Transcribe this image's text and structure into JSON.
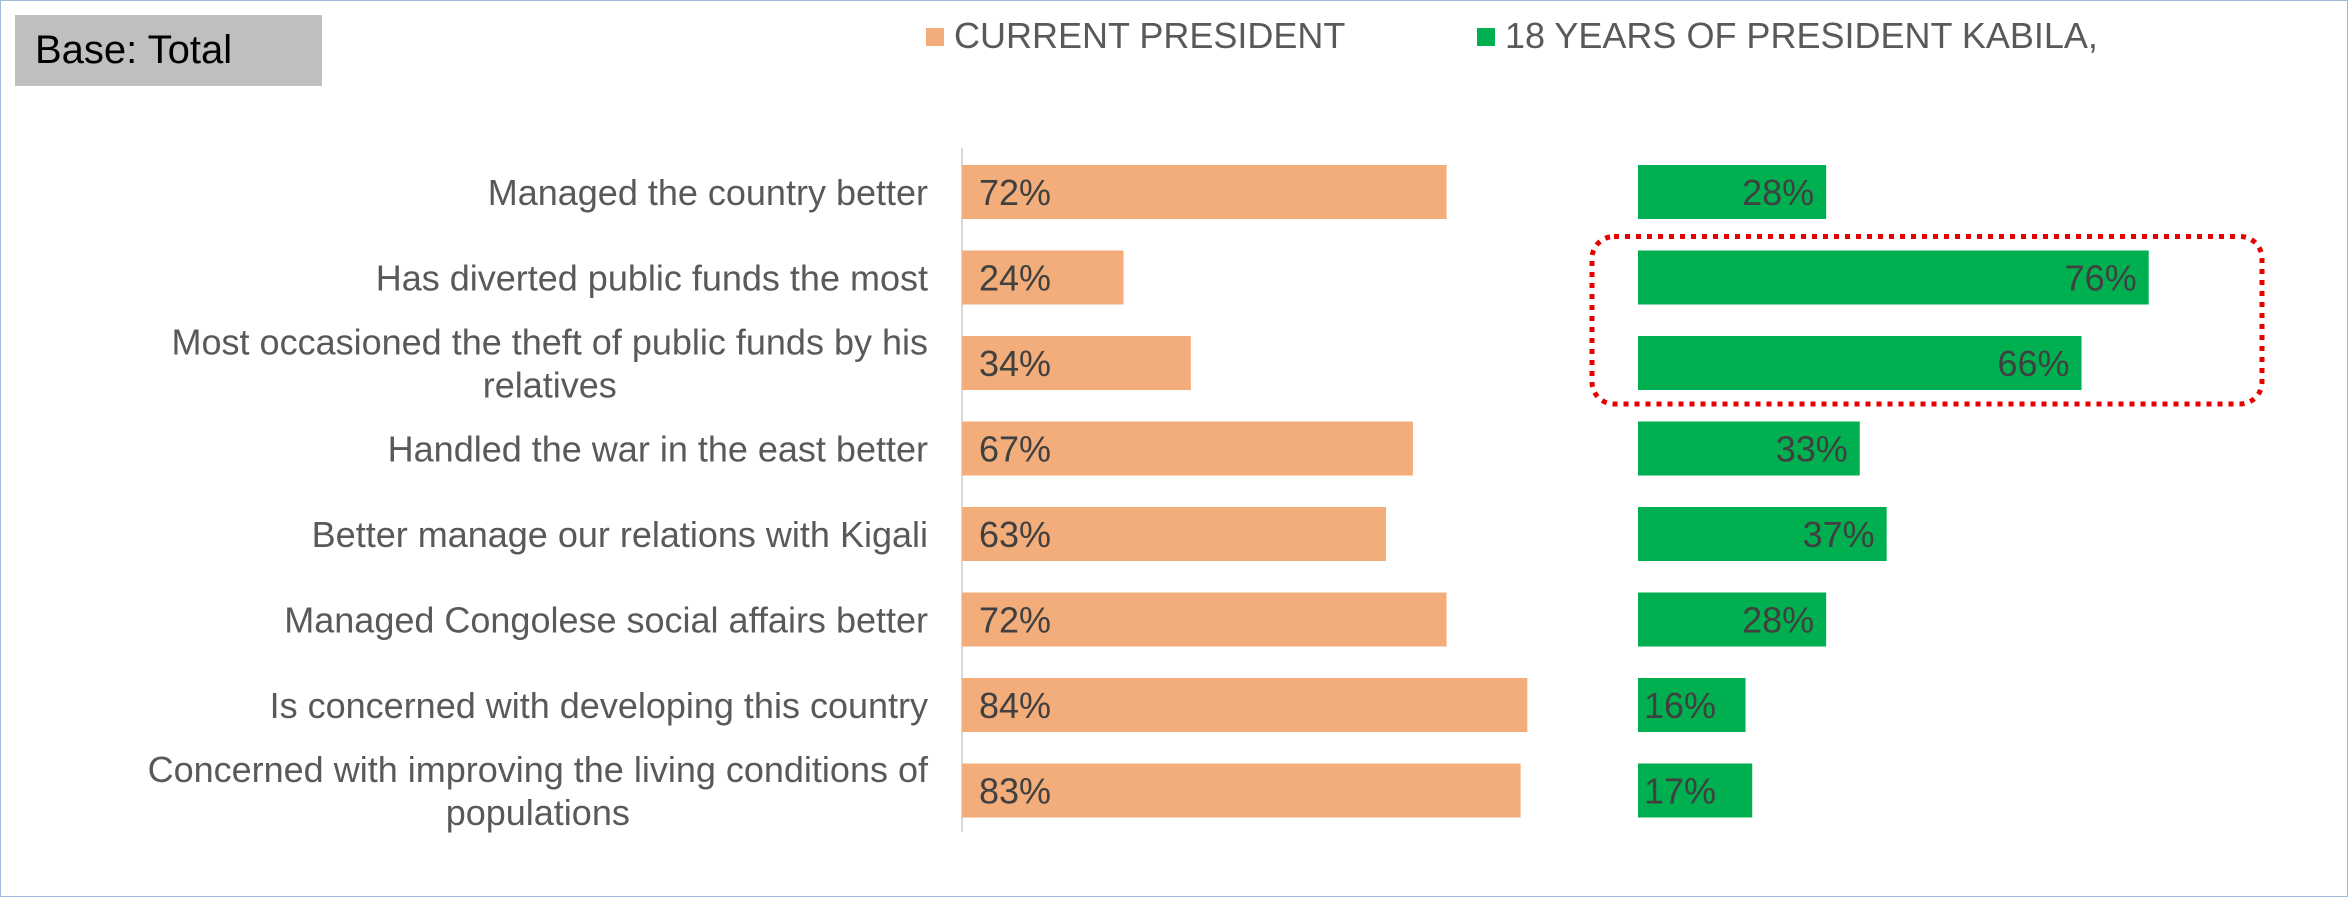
{
  "base_label": "Base: Total",
  "chart_data": {
    "type": "bar",
    "orientation": "horizontal",
    "layout": "two-panel",
    "categories": [
      [
        "Managed the country better"
      ],
      [
        "Has diverted public funds the most"
      ],
      [
        "Most occasioned the theft of public funds by his",
        "relatives"
      ],
      [
        "Handled the war in the east better"
      ],
      [
        "Better manage our relations with Kigali"
      ],
      [
        "Managed Congolese social affairs better"
      ],
      [
        "Is concerned with developing this country"
      ],
      [
        "Concerned with improving the living conditions of",
        "populations"
      ]
    ],
    "series": [
      {
        "name": "CURRENT PRESIDENT",
        "color": "#f2ad7b",
        "values": [
          72,
          24,
          34,
          67,
          63,
          72,
          84,
          83
        ],
        "labels": [
          "72%",
          "24%",
          "34%",
          "67%",
          "63%",
          "72%",
          "84%",
          "83%"
        ]
      },
      {
        "name": "18 YEARS OF PRESIDENT KABILA,",
        "color": "#00b050",
        "values": [
          28,
          76,
          66,
          33,
          37,
          28,
          16,
          17
        ],
        "labels": [
          "28%",
          "76%",
          "66%",
          "33%",
          "37%",
          "28%",
          "16%",
          "17%"
        ]
      }
    ],
    "value_unit": "%",
    "xlim": [
      0,
      100
    ],
    "legend_position": "top",
    "grid": false,
    "highlight": {
      "series": "18 YEARS OF PRESIDENT KABILA,",
      "rows": [
        1,
        2
      ],
      "style": "dotted",
      "color": "#e60000"
    }
  }
}
